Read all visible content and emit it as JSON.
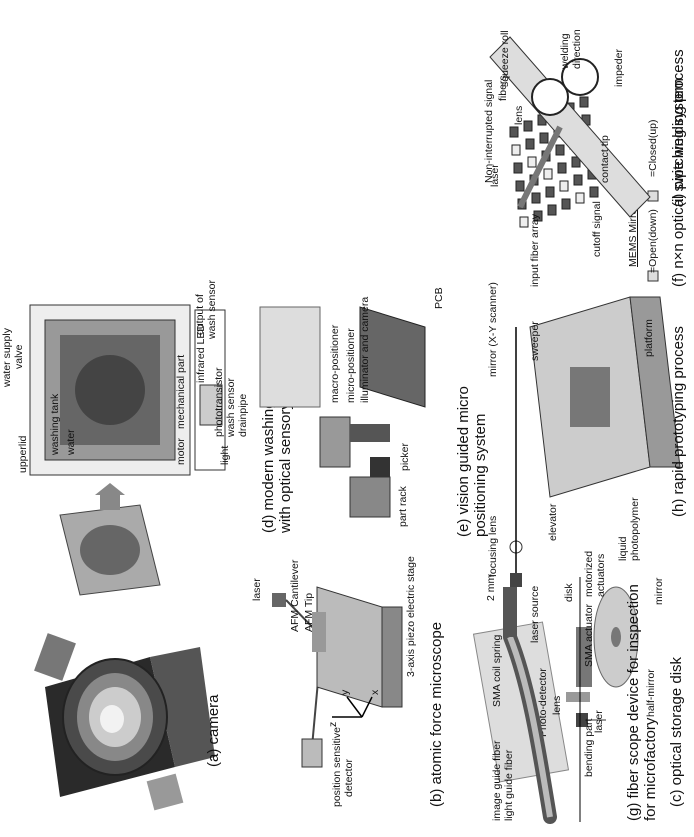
{
  "panels": {
    "a": {
      "caption": "(a) camera"
    },
    "b": {
      "caption": "(b) atomic force microscope",
      "labels": {
        "laser": "laser",
        "cantilever": "AFM Cantilever",
        "tip": "AFM Tip",
        "stage": "3-axis piezo electric stage",
        "psd1": "position sensitive",
        "psd2": "detector",
        "z": "z",
        "y": "y",
        "x": "x"
      }
    },
    "c": {
      "caption": "(c) optical storage disk",
      "labels": {
        "disk": "disk",
        "mirror": "mirror",
        "photodetector": "Photo-detector",
        "lens": "lens",
        "laser": "laser",
        "halfmirror": "half-mirror"
      }
    },
    "d": {
      "caption1": "(d) modern washing machine",
      "caption2": "with optical sensory feedback",
      "labels": {
        "upperlid": "upperlid",
        "water_supply": "water supply",
        "valve": "valve",
        "infrared": "infrared LED",
        "output1": "output of",
        "output2": "wash sensor",
        "washing_tank": "washing tank",
        "water": "water",
        "light": "light",
        "phototransistor": "phototransistor",
        "wash_sensor": "wash sensor",
        "drainpipe": "drainpipe",
        "motor": "motor",
        "mechanical": "mechanical part"
      }
    },
    "e": {
      "caption1": "(e) vision guided micro",
      "caption2": "positioning system",
      "labels": {
        "macro": "macro-positioner",
        "micro": "micro-positioner",
        "illuminator": "illuminator and camera",
        "part_rack": "part rack",
        "picker": "picker",
        "pcb": "PCB"
      }
    },
    "f": {
      "caption": "(f) n×n optical switching system",
      "labels": {
        "non_interrupted": "Non-interrupted signal",
        "fibers": "fibers",
        "lens": "lens",
        "input_fiber": "input fiber array",
        "cutoff": "cutoff signal",
        "mems": "MEMS Mirror",
        "open": "=Open(down)",
        "closed": "=Closed(up)"
      }
    },
    "g": {
      "caption1": "(g) fiber scope device for inspection",
      "caption2": "for microfactory",
      "labels": {
        "image_guide": "image guide fiber",
        "light_guide": "light guide fiber",
        "sma_spring": "SMA coil spring",
        "two_mm": "2 mm",
        "bending": "bending part",
        "sma_actuator": "SMA actuator"
      }
    },
    "h": {
      "caption": "(h) rapid prototyping process",
      "labels": {
        "focusing": "focusing lens",
        "mirror": "mirror (X-Y scanner)",
        "sweeper": "sweeper",
        "laser_source": "laser source",
        "elevator": "elevator",
        "motorized1": "motorized",
        "motorized2": "actuators",
        "liquid1": "liquid",
        "liquid2": "photopolymer",
        "platform": "platform"
      }
    },
    "i": {
      "caption": "(i) pipe welding process",
      "labels": {
        "squeeze": "squeeze roll",
        "laser": "laser",
        "welding1": "welding",
        "welding2": "direction",
        "contact": "contact tip",
        "impeder": "impeder"
      }
    }
  }
}
